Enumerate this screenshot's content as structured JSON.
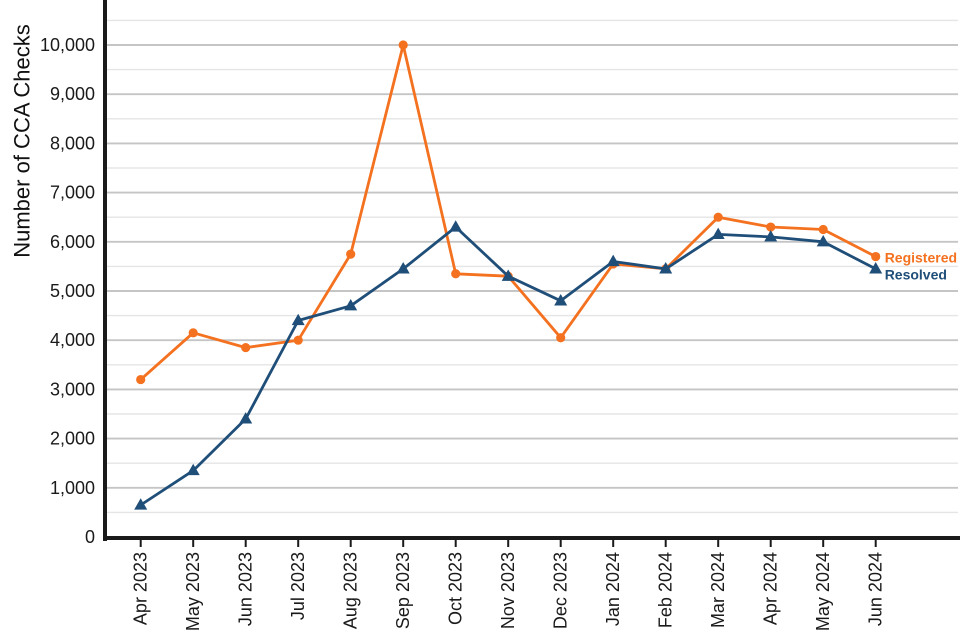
{
  "chart_data": {
    "type": "line",
    "title": "",
    "ylabel": "Number of CCA Checks",
    "xlabel": "",
    "categories": [
      "Apr 2023",
      "May 2023",
      "Jun 2023",
      "Jul 2023",
      "Aug 2023",
      "Sep 2023",
      "Oct 2023",
      "Nov 2023",
      "Dec 2023",
      "Jan 2024",
      "Feb 2024",
      "Mar 2024",
      "Apr 2024",
      "May 2024",
      "Jun 2024"
    ],
    "series": [
      {
        "name": "Registered",
        "color": "#F4711F",
        "marker": "circle",
        "values": [
          3200,
          4150,
          3850,
          4000,
          5750,
          10000,
          5350,
          5300,
          4050,
          5550,
          5450,
          6500,
          6300,
          6250,
          5700
        ]
      },
      {
        "name": "Resolved",
        "color": "#1F4E79",
        "marker": "triangle",
        "values": [
          650,
          1350,
          2400,
          4400,
          4700,
          5450,
          6300,
          5300,
          4800,
          5600,
          5450,
          6150,
          6100,
          6000,
          5450
        ]
      }
    ],
    "ylim": [
      0,
      10915
    ],
    "yticks": [
      0,
      1000,
      2000,
      3000,
      4000,
      5000,
      6000,
      7000,
      8000,
      9000,
      10000
    ],
    "minor_gridline_step": 500,
    "grid": true,
    "legend_position": "end-of-line",
    "colors": {
      "grid_major": "#C5C5C5",
      "grid_minor": "#E5E5E5",
      "axis": "#1A1A1A",
      "tick_label": "#1A1A1A"
    }
  }
}
